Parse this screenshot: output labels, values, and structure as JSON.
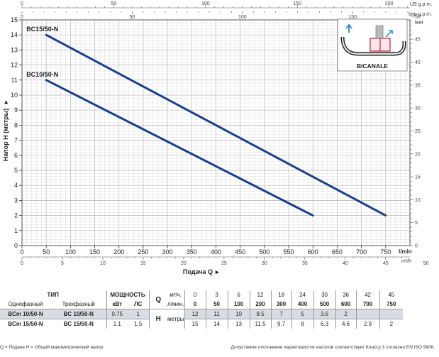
{
  "chart_data": {
    "type": "line",
    "x_label": "Подача Q",
    "x_unit": "l/min",
    "x_unit2": "m³/h",
    "y_label": "Напор H (метры)",
    "y_unit_right": "feet",
    "top_unit_us": "US g.p.m.",
    "top_unit_imp": "Imp g.p.m.",
    "xlim": [
      0,
      800
    ],
    "ylim": [
      0,
      15
    ],
    "x_ticks": [
      "0",
      "50",
      "100",
      "150",
      "200",
      "250",
      "300",
      "350",
      "400",
      "450",
      "500",
      "550",
      "600",
      "650",
      "700",
      "750"
    ],
    "m3h_ticks": [
      "0",
      "5",
      "10",
      "15",
      "20",
      "25",
      "30",
      "35",
      "40",
      "45",
      "50"
    ],
    "us_gpm_ticks": [
      "0",
      "50",
      "100",
      "150",
      "200"
    ],
    "imp_gpm_ticks": [
      "0",
      "50",
      "100",
      "150"
    ],
    "y_ticks": [
      "0",
      "1",
      "2",
      "3",
      "4",
      "5",
      "6",
      "7",
      "8",
      "9",
      "10",
      "11",
      "12",
      "13",
      "14",
      "15"
    ],
    "feet_ticks": [
      "0",
      "5",
      "10",
      "15",
      "20",
      "25",
      "30",
      "35",
      "40",
      "45",
      "50"
    ],
    "grid": true,
    "series": [
      {
        "name": "BC15/50-N",
        "color": "#1a3f8c",
        "x": [
          50,
          750
        ],
        "y": [
          14,
          2
        ]
      },
      {
        "name": "BC10/50-N",
        "color": "#1a3f8c",
        "x": [
          50,
          600
        ],
        "y": [
          11,
          2
        ]
      }
    ],
    "inset_label": "BICANALE"
  },
  "table": {
    "h_type": "ТИП",
    "h_power": "МОЩНОСТЬ",
    "h_single": "Однофазный",
    "h_three": "Трехфазный",
    "h_kw": "кВт",
    "h_hp": "ЛС",
    "q_letter": "Q",
    "q_m3h_unit": "м³/ч.",
    "q_lmin_unit": "л/мин.",
    "q_m3h": [
      "0",
      "3",
      "6",
      "12",
      "18",
      "24",
      "30",
      "36",
      "42",
      "45"
    ],
    "q_lmin": [
      "0",
      "50",
      "100",
      "200",
      "300",
      "400",
      "500",
      "600",
      "700",
      "750"
    ],
    "h_letter": "H",
    "h_unit": "метры",
    "rows": [
      {
        "single": "BCm 10/50-N",
        "three": "BC 10/50-N",
        "kw": "0.75",
        "hp": "1",
        "h": [
          "12",
          "11",
          "10",
          "8.5",
          "7",
          "5",
          "3.6",
          "2",
          "",
          ""
        ]
      },
      {
        "single": "BCm 15/50-N",
        "three": "BC 15/50-N",
        "kw": "1.1",
        "hp": "1.5",
        "h": [
          "15",
          "14",
          "13",
          "11.5",
          "9.7",
          "8",
          "6.3",
          "4.6",
          "2.9",
          "2"
        ]
      }
    ]
  },
  "footer": {
    "left": "Q = Подача  H = Общий манометрический напор",
    "right": "Допустимое отклонение характеристик насосов соответствует Классу 3 согласно EN ISO 9906."
  }
}
